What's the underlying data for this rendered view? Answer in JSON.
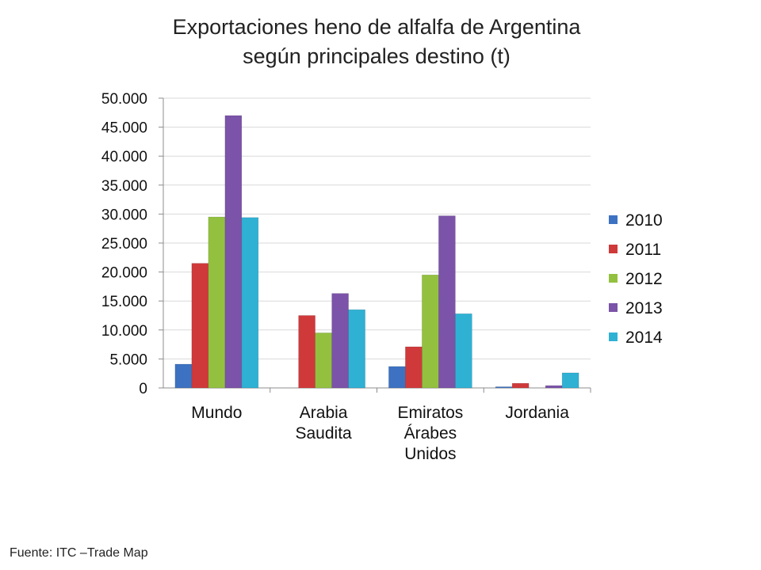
{
  "chart_data": {
    "type": "bar",
    "title_lines": [
      "Exportaciones heno de alfalfa de Argentina",
      "según principales destino (t)"
    ],
    "categories": [
      [
        "Mundo"
      ],
      [
        "Arabia",
        "Saudita"
      ],
      [
        "Emiratos",
        "Árabes",
        "Unidos"
      ],
      [
        "Jordania"
      ]
    ],
    "series": [
      {
        "name": "2010",
        "color": "#3d72c2",
        "values": [
          4100,
          0,
          3700,
          200
        ]
      },
      {
        "name": "2011",
        "color": "#d0393a",
        "values": [
          21500,
          12500,
          7100,
          800
        ]
      },
      {
        "name": "2012",
        "color": "#93c13f",
        "values": [
          29500,
          9500,
          19500,
          0
        ]
      },
      {
        "name": "2013",
        "color": "#7b53a8",
        "values": [
          47000,
          16300,
          29700,
          400
        ]
      },
      {
        "name": "2014",
        "color": "#2fb1d4",
        "values": [
          29400,
          13500,
          12800,
          2600
        ]
      }
    ],
    "ylim": [
      0,
      50000
    ],
    "yticks": [
      0,
      5000,
      10000,
      15000,
      20000,
      25000,
      30000,
      35000,
      40000,
      45000,
      50000
    ],
    "ytick_labels": [
      "0",
      "5.000",
      "10.000",
      "15.000",
      "20.000",
      "25.000",
      "30.000",
      "35.000",
      "40.000",
      "45.000",
      "50.000"
    ],
    "grid": true,
    "legend_position": "right"
  },
  "source": "Fuente: ITC –Trade Map"
}
